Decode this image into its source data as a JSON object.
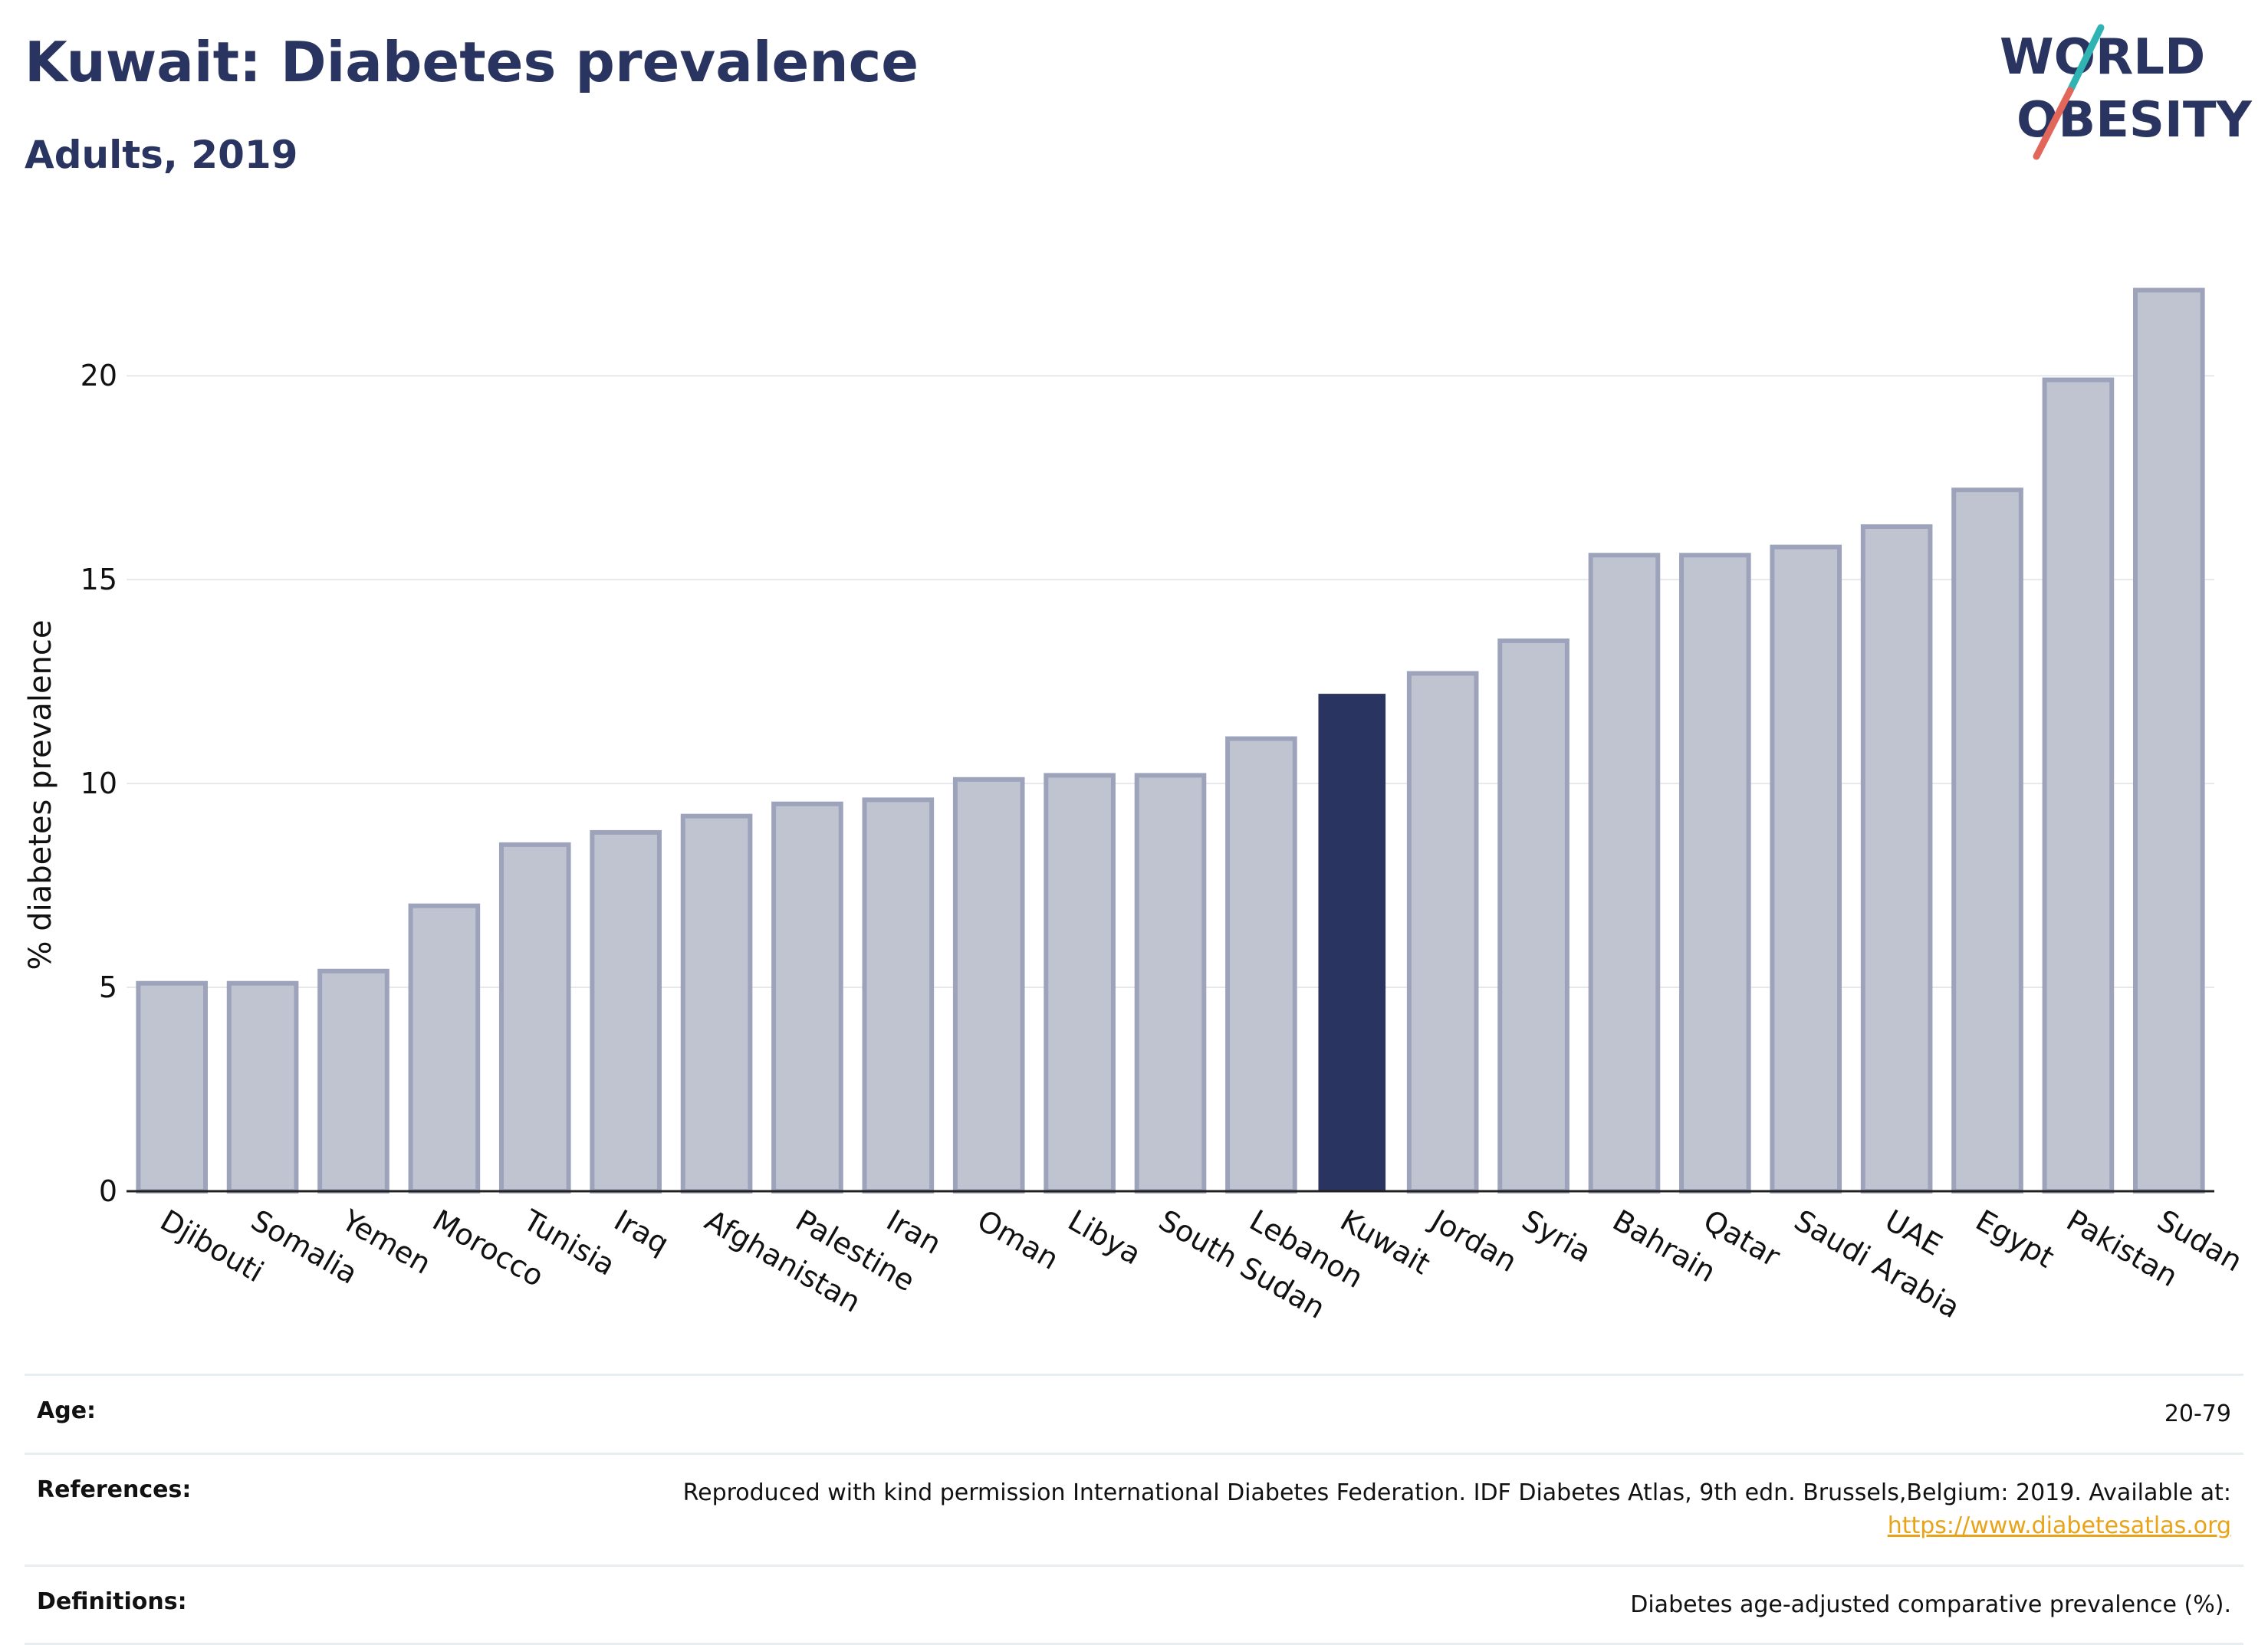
{
  "header": {
    "title": "Kuwait: Diabetes prevalence",
    "subtitle": "Adults, 2019"
  },
  "logo": {
    "line1": "WORLD",
    "line2": "OBESITY"
  },
  "colors": {
    "highlight": "#2a3460",
    "bar_fill": "#c0c4d1",
    "bar_stroke": "#9ea3bc",
    "logo_teal": "#2fb3b3",
    "logo_coral": "#e2675a",
    "link": "#e8a317"
  },
  "chart_data": {
    "type": "bar",
    "categories": [
      "Djibouti",
      "Somalia",
      "Yemen",
      "Morocco",
      "Tunisia",
      "Iraq",
      "Afghanistan",
      "Palestine",
      "Iran",
      "Oman",
      "Libya",
      "South Sudan",
      "Lebanon",
      "Kuwait",
      "Jordan",
      "Syria",
      "Bahrain",
      "Qatar",
      "Saudi Arabia",
      "UAE",
      "Egypt",
      "Pakistan",
      "Sudan"
    ],
    "values": [
      5.1,
      5.1,
      5.4,
      7.0,
      8.5,
      8.8,
      9.2,
      9.5,
      9.6,
      10.1,
      10.2,
      10.2,
      11.1,
      12.2,
      12.7,
      13.5,
      15.6,
      15.6,
      15.8,
      16.3,
      17.2,
      19.9,
      22.1
    ],
    "highlight": "Kuwait",
    "ylabel": "% diabetes prevalence",
    "xlabel": "",
    "yticks": [
      0,
      5,
      10,
      15,
      20
    ],
    "ylim": [
      0,
      23.2
    ],
    "grid": true
  },
  "info": {
    "age_label": "Age:",
    "age_value": "20-79",
    "references_label": "References:",
    "references_text": "Reproduced with kind permission International Diabetes Federation. IDF Diabetes Atlas, 9th edn. Brussels,Belgium: 2019. Available at:",
    "references_link": "https://www.diabetesatlas.org",
    "definitions_label": "Definitions:",
    "definitions_value": "Diabetes age-adjusted comparative prevalence (%)."
  }
}
